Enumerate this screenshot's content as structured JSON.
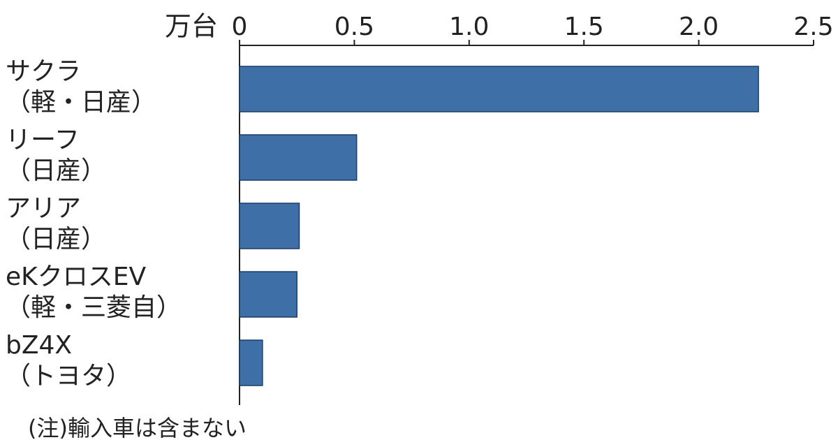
{
  "chart_data": {
    "type": "hbar",
    "unit": "万台",
    "categories": [
      "サクラ\n（軽・日産）",
      "リーフ\n（日産）",
      "アリア\n（日産）",
      "eKクロスEV\n（軽・三菱自）",
      "bZ4X\n（トヨタ）"
    ],
    "values": [
      2.26,
      0.51,
      0.26,
      0.25,
      0.1
    ],
    "color": "#3e6fa6",
    "xlim": [
      0,
      2.5
    ],
    "xticks": [
      0,
      0.5,
      {
        "value": 1,
        "label": "1.0"
      },
      1.5,
      {
        "value": 2,
        "label": "2.0"
      },
      2.5
    ],
    "note": "(注)輸入車は含まない"
  }
}
